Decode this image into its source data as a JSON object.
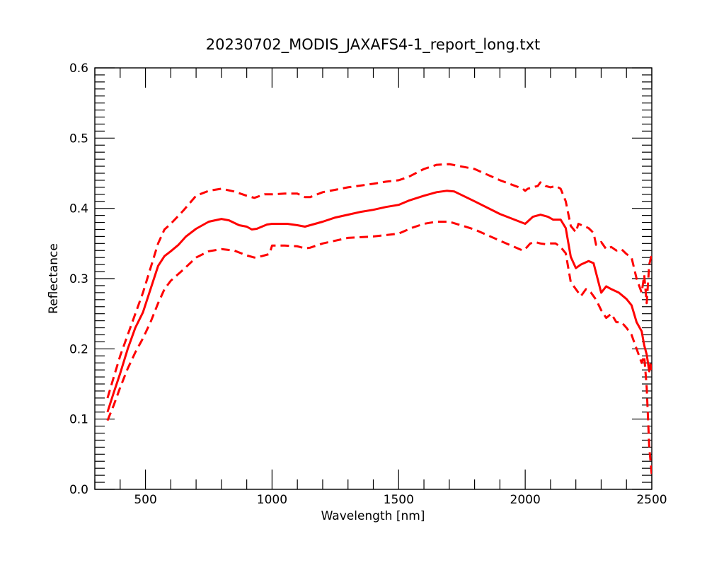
{
  "chart_data": {
    "type": "line",
    "title": "20230702_MODIS_JAXAFS4-1_report_long.txt",
    "xlabel": "Wavelength [nm]",
    "ylabel": "Reflectance",
    "xlim": [
      300,
      2500
    ],
    "ylim": [
      0.0,
      0.6
    ],
    "x_ticks": [
      500,
      1000,
      1500,
      2000,
      2500
    ],
    "y_ticks": [
      0.0,
      0.1,
      0.2,
      0.3,
      0.4,
      0.5,
      0.6
    ],
    "x_tick_labels": [
      "500",
      "1000",
      "1500",
      "2000",
      "2500"
    ],
    "y_tick_labels": [
      "0.0",
      "0.1",
      "0.2",
      "0.3",
      "0.4",
      "0.5",
      "0.6"
    ],
    "grid": false,
    "legend": "none",
    "color": "#ff0000",
    "series": [
      {
        "style": "solid",
        "x": [
          350,
          375,
          400,
          430,
          460,
          490,
          520,
          550,
          575,
          600,
          630,
          660,
          700,
          750,
          800,
          830,
          870,
          900,
          920,
          940,
          960,
          980,
          1000,
          1030,
          1060,
          1100,
          1130,
          1150,
          1200,
          1250,
          1300,
          1350,
          1400,
          1450,
          1500,
          1540,
          1600,
          1650,
          1690,
          1720,
          1800,
          1900,
          2000,
          2030,
          2060,
          2090,
          2110,
          2140,
          2160,
          2180,
          2200,
          2220,
          2250,
          2270,
          2290,
          2300,
          2320,
          2340,
          2370,
          2400,
          2420,
          2440,
          2460,
          2470,
          2480,
          2490,
          2495,
          2500
        ],
        "y": [
          0.11,
          0.138,
          0.165,
          0.2,
          0.23,
          0.252,
          0.285,
          0.318,
          0.332,
          0.339,
          0.348,
          0.36,
          0.371,
          0.381,
          0.385,
          0.383,
          0.376,
          0.374,
          0.37,
          0.371,
          0.374,
          0.377,
          0.378,
          0.378,
          0.378,
          0.376,
          0.374,
          0.376,
          0.381,
          0.387,
          0.391,
          0.395,
          0.398,
          0.402,
          0.405,
          0.411,
          0.418,
          0.423,
          0.425,
          0.424,
          0.41,
          0.392,
          0.378,
          0.388,
          0.391,
          0.388,
          0.384,
          0.384,
          0.372,
          0.331,
          0.315,
          0.32,
          0.325,
          0.322,
          0.294,
          0.28,
          0.289,
          0.285,
          0.28,
          0.271,
          0.262,
          0.238,
          0.225,
          0.205,
          0.192,
          0.168,
          0.178,
          0.17
        ]
      },
      {
        "style": "dashed",
        "x": [
          350,
          375,
          400,
          430,
          460,
          490,
          520,
          550,
          575,
          600,
          650,
          700,
          750,
          800,
          850,
          900,
          930,
          970,
          1000,
          1050,
          1100,
          1130,
          1150,
          1200,
          1300,
          1400,
          1450,
          1500,
          1540,
          1600,
          1650,
          1700,
          1800,
          1900,
          1990,
          2000,
          2010,
          2030,
          2050,
          2060,
          2080,
          2100,
          2120,
          2140,
          2160,
          2180,
          2200,
          2210,
          2230,
          2250,
          2270,
          2280,
          2300,
          2320,
          2340,
          2360,
          2380,
          2400,
          2420,
          2440,
          2460,
          2470,
          2480,
          2490,
          2500
        ],
        "y": [
          0.13,
          0.16,
          0.19,
          0.22,
          0.25,
          0.28,
          0.315,
          0.35,
          0.37,
          0.378,
          0.397,
          0.418,
          0.425,
          0.428,
          0.424,
          0.418,
          0.415,
          0.42,
          0.42,
          0.421,
          0.421,
          0.416,
          0.416,
          0.423,
          0.43,
          0.435,
          0.438,
          0.44,
          0.445,
          0.456,
          0.462,
          0.463,
          0.456,
          0.44,
          0.428,
          0.425,
          0.428,
          0.43,
          0.432,
          0.437,
          0.432,
          0.43,
          0.432,
          0.428,
          0.41,
          0.375,
          0.366,
          0.378,
          0.375,
          0.372,
          0.365,
          0.348,
          0.352,
          0.342,
          0.345,
          0.34,
          0.342,
          0.335,
          0.33,
          0.3,
          0.28,
          0.305,
          0.265,
          0.32,
          0.335
        ]
      },
      {
        "style": "dashed",
        "x": [
          350,
          375,
          400,
          430,
          460,
          490,
          520,
          550,
          575,
          600,
          650,
          700,
          750,
          800,
          850,
          900,
          930,
          960,
          990,
          1000,
          1050,
          1100,
          1130,
          1150,
          1200,
          1300,
          1400,
          1450,
          1500,
          1550,
          1600,
          1650,
          1700,
          1800,
          1900,
          1990,
          2000,
          2020,
          2040,
          2060,
          2080,
          2100,
          2120,
          2140,
          2160,
          2180,
          2200,
          2220,
          2240,
          2260,
          2280,
          2300,
          2320,
          2340,
          2360,
          2380,
          2400,
          2420,
          2440,
          2460,
          2470,
          2480,
          2490,
          2500
        ],
        "y": [
          0.098,
          0.12,
          0.145,
          0.172,
          0.195,
          0.215,
          0.238,
          0.265,
          0.285,
          0.297,
          0.313,
          0.33,
          0.339,
          0.342,
          0.34,
          0.333,
          0.33,
          0.332,
          0.335,
          0.347,
          0.347,
          0.346,
          0.343,
          0.344,
          0.35,
          0.358,
          0.36,
          0.362,
          0.364,
          0.372,
          0.378,
          0.381,
          0.381,
          0.37,
          0.354,
          0.34,
          0.342,
          0.35,
          0.352,
          0.35,
          0.349,
          0.35,
          0.35,
          0.345,
          0.336,
          0.295,
          0.285,
          0.275,
          0.285,
          0.28,
          0.27,
          0.255,
          0.244,
          0.25,
          0.238,
          0.238,
          0.23,
          0.22,
          0.2,
          0.18,
          0.19,
          0.145,
          0.06,
          0.02
        ]
      }
    ]
  }
}
